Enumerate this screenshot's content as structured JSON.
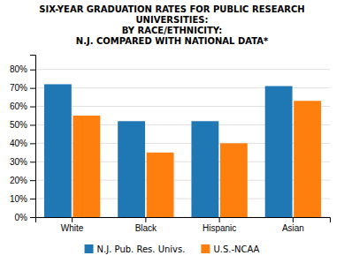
{
  "chart_data": {
    "type": "bar",
    "title": "SIX-YEAR GRADUATION RATES FOR PUBLIC RESEARCH\nUNIVERSITIES:\nBY RACE/ETHNICITY:\nN.J. COMPARED WITH NATIONAL DATA*",
    "categories": [
      "White",
      "Black",
      "Hispanic",
      "Asian"
    ],
    "series": [
      {
        "name": "N.J. Pub. Res. Univs.",
        "values": [
          72,
          52,
          52,
          71
        ]
      },
      {
        "name": "U.S.-NCAA",
        "values": [
          55,
          35,
          40,
          63
        ]
      }
    ],
    "ylim": [
      0,
      88
    ],
    "yticks": [
      {
        "value": 0,
        "label": "0%"
      },
      {
        "value": 10,
        "label": "10%"
      },
      {
        "value": 20,
        "label": "20%"
      },
      {
        "value": 30,
        "label": "30%"
      },
      {
        "value": 40,
        "label": "40%"
      },
      {
        "value": 50,
        "label": "50%"
      },
      {
        "value": 60,
        "label": "60%"
      },
      {
        "value": 70,
        "label": "70%"
      },
      {
        "value": 80,
        "label": "80%"
      }
    ],
    "grid": true,
    "legend": "bottom"
  }
}
